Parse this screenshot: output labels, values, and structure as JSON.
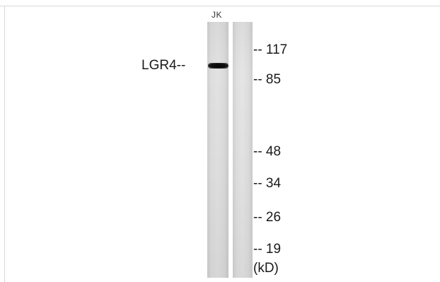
{
  "blot": {
    "lane_label": "JK",
    "protein_label": "LGR4--",
    "markers": [
      {
        "label": "-- 117"
      },
      {
        "label": "-- 85"
      },
      {
        "label": "-- 48"
      },
      {
        "label": "-- 34"
      },
      {
        "label": "-- 26"
      },
      {
        "label": "-- 19"
      }
    ],
    "unit_label": "(kD)"
  }
}
